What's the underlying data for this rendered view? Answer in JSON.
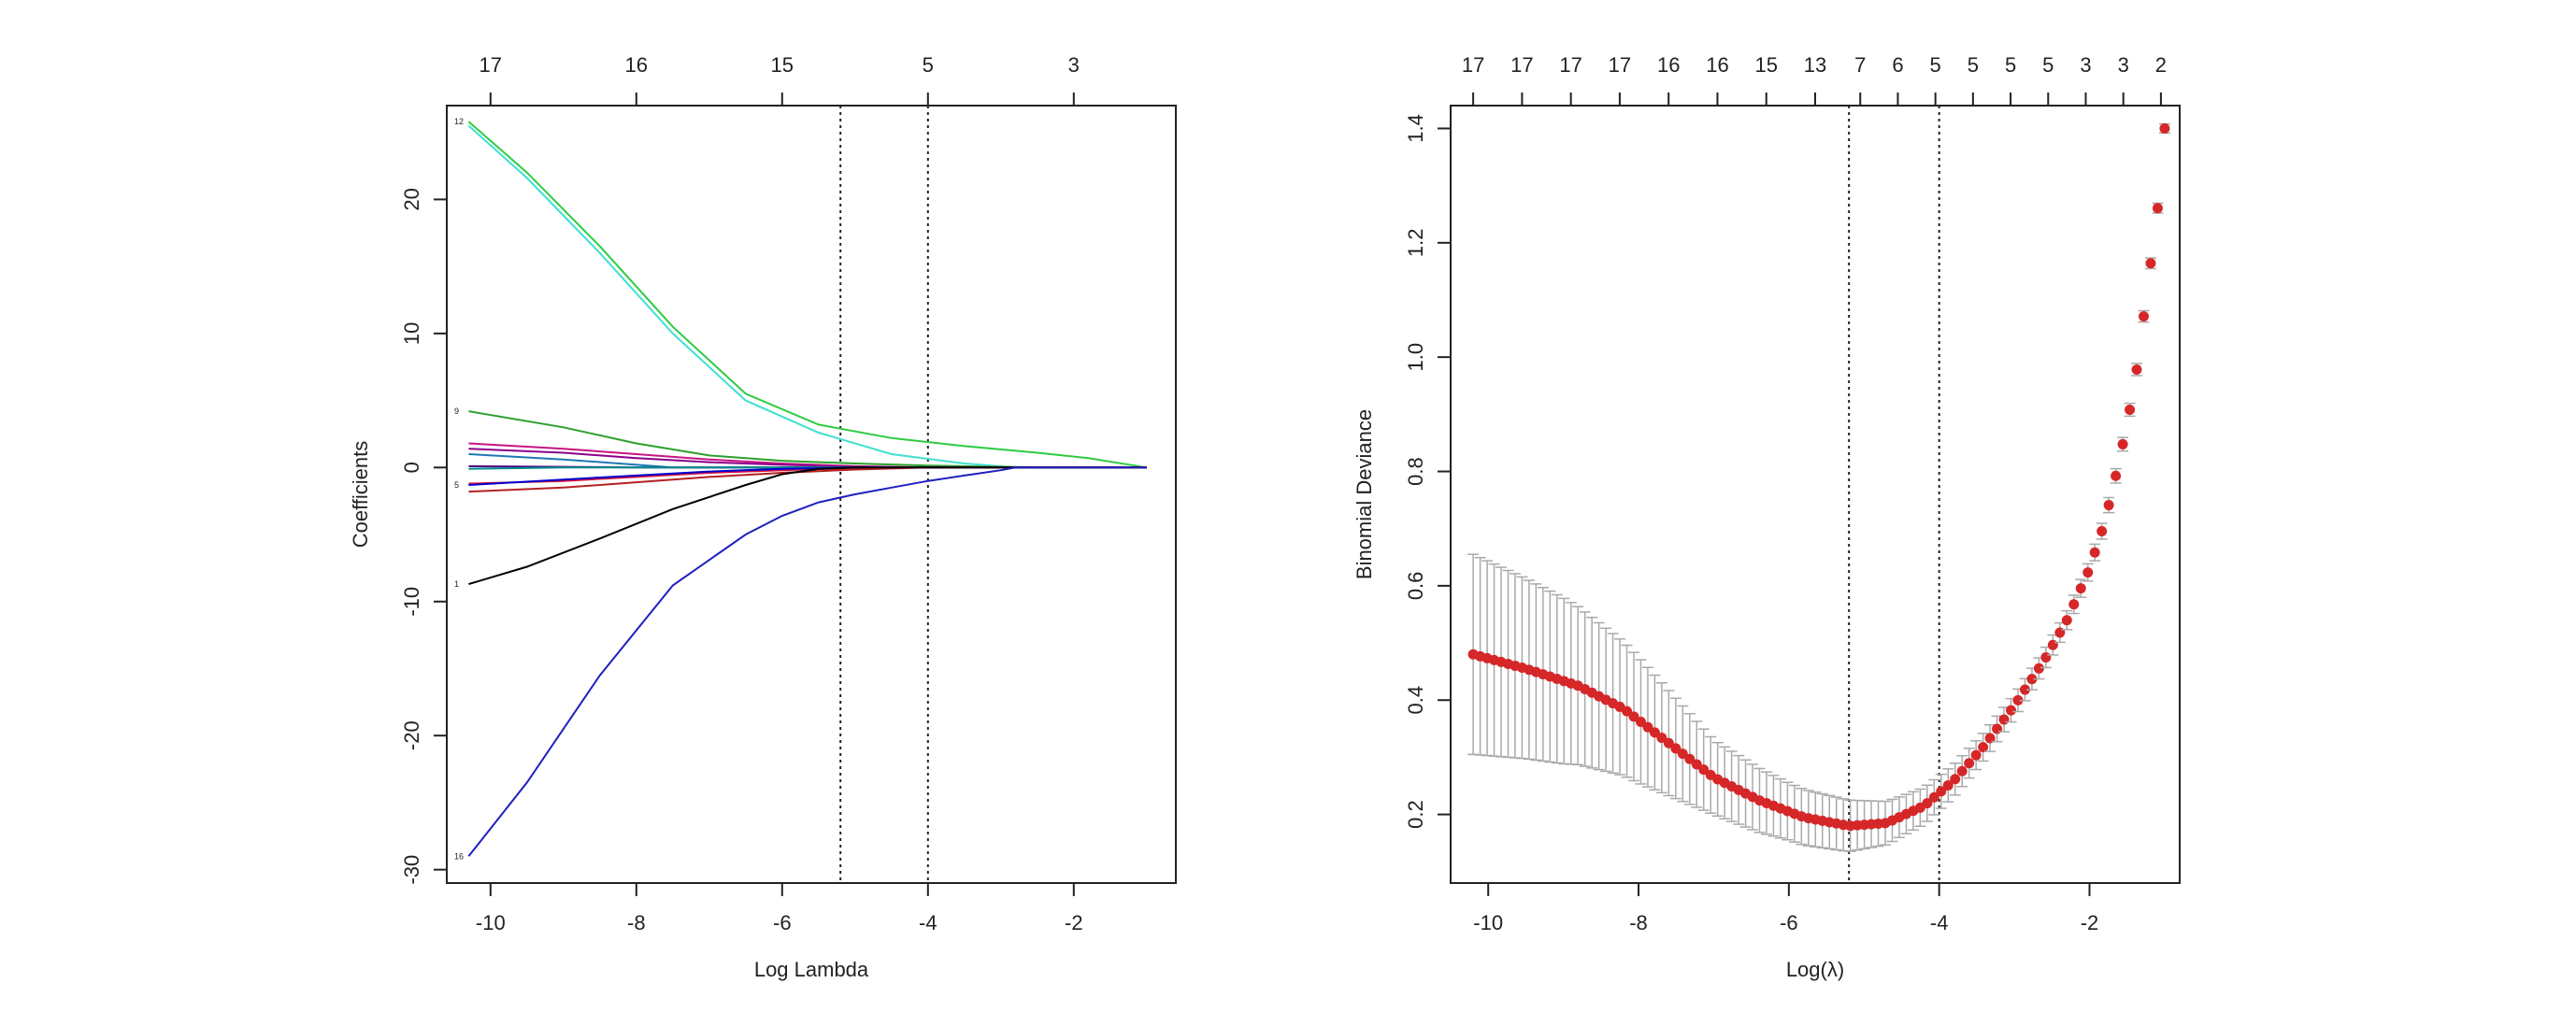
{
  "chart_data": [
    {
      "type": "line",
      "title": "",
      "xlabel": "Log Lambda",
      "ylabel": "Coefficients",
      "xlim": [
        -10.6,
        -0.6
      ],
      "ylim": [
        -31,
        27
      ],
      "xticks": [
        -10,
        -8,
        -6,
        -4,
        -2
      ],
      "yticks": [
        -30,
        -20,
        -10,
        0,
        10,
        20
      ],
      "top_axis": {
        "x": [
          -10,
          -8,
          -6,
          -4,
          -2
        ],
        "labels": [
          "17",
          "16",
          "15",
          "5",
          "3"
        ]
      },
      "vlines": [
        -5.2,
        -4.0
      ],
      "grid": false,
      "series": [
        {
          "label": "12",
          "color": "#2ecc40",
          "x": [
            -10.3,
            -9.5,
            -8.5,
            -7.5,
            -6.5,
            -5.5,
            -4.5,
            -3.5,
            -2.5,
            -1.8,
            -1.0
          ],
          "y": [
            25.8,
            22.0,
            16.5,
            10.5,
            5.5,
            3.2,
            2.2,
            1.6,
            1.1,
            0.7,
            0.0
          ]
        },
        {
          "label": "",
          "color": "#40e0d0",
          "x": [
            -10.3,
            -9.5,
            -8.5,
            -7.5,
            -6.5,
            -5.5,
            -4.5,
            -3.5,
            -2.8,
            -2.2,
            -1.0
          ],
          "y": [
            25.5,
            21.6,
            16.0,
            10.0,
            5.0,
            2.6,
            1.0,
            0.3,
            0.0,
            0.0,
            0.0
          ]
        },
        {
          "label": "9",
          "color": "#2ca02c",
          "x": [
            -10.3,
            -9.0,
            -8.0,
            -7.0,
            -6.0,
            -5.0,
            -4.0,
            -3.0,
            -2.0,
            -1.0
          ],
          "y": [
            4.2,
            3.0,
            1.8,
            0.9,
            0.5,
            0.3,
            0.15,
            0.05,
            0.0,
            0.0
          ]
        },
        {
          "label": "",
          "color": "#c71585",
          "x": [
            -10.3,
            -9.0,
            -8.0,
            -7.0,
            -6.0,
            -5.0,
            -4.0,
            -3.0,
            -1.0
          ],
          "y": [
            1.8,
            1.4,
            1.0,
            0.6,
            0.3,
            0.1,
            0.0,
            0.0,
            0.0
          ]
        },
        {
          "label": "",
          "color": "#8b008b",
          "x": [
            -10.3,
            -9.0,
            -8.0,
            -7.0,
            -6.0,
            -5.0,
            -4.0,
            -3.0,
            -1.0
          ],
          "y": [
            1.4,
            1.1,
            0.7,
            0.4,
            0.2,
            0.05,
            0.0,
            0.0,
            0.0
          ]
        },
        {
          "label": "",
          "color": "#1f77b4",
          "x": [
            -10.3,
            -9.0,
            -8.0,
            -7.5,
            -7.0,
            -6.0,
            -1.0
          ],
          "y": [
            1.0,
            0.6,
            0.2,
            0.0,
            0.0,
            0.0,
            0.0
          ]
        },
        {
          "label": "",
          "color": "#4b0082",
          "x": [
            -10.3,
            -9.0,
            -8.0,
            -7.0,
            -6.0,
            -1.0
          ],
          "y": [
            0.1,
            0.05,
            0.0,
            0.0,
            0.0,
            0.0
          ]
        },
        {
          "label": "",
          "color": "#008b8b",
          "x": [
            -10.3,
            -9.0,
            -8.0,
            -7.0,
            -1.0
          ],
          "y": [
            -0.1,
            0.0,
            0.0,
            0.0,
            0.0
          ]
        },
        {
          "label": "",
          "color": "#dc143c",
          "x": [
            -10.3,
            -9.0,
            -8.0,
            -7.0,
            -6.0,
            -5.0,
            -4.0,
            -3.0,
            -1.0
          ],
          "y": [
            -1.2,
            -1.0,
            -0.7,
            -0.4,
            -0.2,
            -0.05,
            0.0,
            0.0,
            0.0
          ]
        },
        {
          "label": "5",
          "color": "#0000cd",
          "x": [
            -10.3,
            -9.0,
            -8.0,
            -7.0,
            -6.0,
            -5.0,
            -4.0,
            -3.0,
            -1.0
          ],
          "y": [
            -1.3,
            -0.9,
            -0.6,
            -0.3,
            -0.1,
            0.0,
            0.0,
            0.0,
            0.0
          ]
        },
        {
          "label": "",
          "color": "#b22222",
          "x": [
            -10.3,
            -9.0,
            -8.0,
            -7.0,
            -6.0,
            -5.0,
            -4.0,
            -3.0,
            -1.0
          ],
          "y": [
            -1.8,
            -1.5,
            -1.1,
            -0.7,
            -0.4,
            -0.15,
            0.0,
            0.0,
            0.0
          ]
        },
        {
          "label": "1",
          "color": "#000000",
          "x": [
            -10.3,
            -9.5,
            -8.5,
            -7.5,
            -6.5,
            -6.0,
            -5.5,
            -5.0,
            -4.0,
            -1.0
          ],
          "y": [
            -8.7,
            -7.4,
            -5.3,
            -3.1,
            -1.3,
            -0.5,
            -0.1,
            0.0,
            0.0,
            0.0
          ]
        },
        {
          "label": "16",
          "color": "#1f1fbf",
          "x": [
            -10.3,
            -9.5,
            -8.5,
            -7.5,
            -6.5,
            -6.0,
            -5.5,
            -5.0,
            -4.5,
            -4.0,
            -3.5,
            -3.0,
            -2.8,
            -1.0
          ],
          "y": [
            -29.0,
            -23.5,
            -15.5,
            -8.8,
            -5.0,
            -3.6,
            -2.6,
            -2.0,
            -1.5,
            -1.0,
            -0.6,
            -0.2,
            0.0,
            0.0
          ]
        }
      ]
    },
    {
      "type": "scatter",
      "title": "",
      "xlabel": "Log(λ)",
      "ylabel": "Binomial Deviance",
      "xlim": [
        -10.5,
        -0.8
      ],
      "ylim": [
        0.08,
        1.44
      ],
      "xticks": [
        -10,
        -8,
        -6,
        -4,
        -2
      ],
      "yticks": [
        0.2,
        0.4,
        0.6,
        0.8,
        1.0,
        1.2,
        1.4
      ],
      "top_axis": {
        "x": [
          -10.2,
          -9.55,
          -8.9,
          -8.25,
          -7.6,
          -6.95,
          -6.3,
          -5.65,
          -5.05,
          -4.55,
          -4.05,
          -3.55,
          -3.05,
          -2.55,
          -2.05,
          -1.55,
          -1.05
        ],
        "labels": [
          "17",
          "17",
          "17",
          "17",
          "16",
          "16",
          "15",
          "13",
          "7",
          "6",
          "5",
          "5",
          "5",
          "5",
          "3",
          "3",
          "2"
        ]
      },
      "vlines": [
        -5.2,
        -4.0
      ],
      "point_color": "#d62728",
      "error_color": "#a9a9a9",
      "grid": false,
      "curve": {
        "x": [
          -10.2,
          -9.5,
          -8.8,
          -8.2,
          -7.6,
          -7.0,
          -6.4,
          -5.8,
          -5.2,
          -4.7,
          -4.2,
          -3.8,
          -3.4,
          -3.0,
          -2.6,
          -2.3,
          -2.0,
          -1.8,
          -1.6,
          -1.4,
          -1.25,
          -1.1,
          -1.0
        ],
        "y": [
          0.48,
          0.455,
          0.425,
          0.385,
          0.325,
          0.265,
          0.225,
          0.195,
          0.18,
          0.185,
          0.215,
          0.26,
          0.32,
          0.39,
          0.47,
          0.54,
          0.63,
          0.71,
          0.82,
          0.95,
          1.1,
          1.25,
          1.4
        ]
      },
      "se": {
        "x": [
          -10.2,
          -9.0,
          -8.0,
          -7.0,
          -6.0,
          -5.2,
          -4.5,
          -4.0,
          -3.0,
          -2.0,
          -1.0
        ],
        "y": [
          0.175,
          0.145,
          0.11,
          0.065,
          0.05,
          0.045,
          0.035,
          0.03,
          0.02,
          0.015,
          0.008
        ]
      },
      "n_points": 100
    }
  ]
}
